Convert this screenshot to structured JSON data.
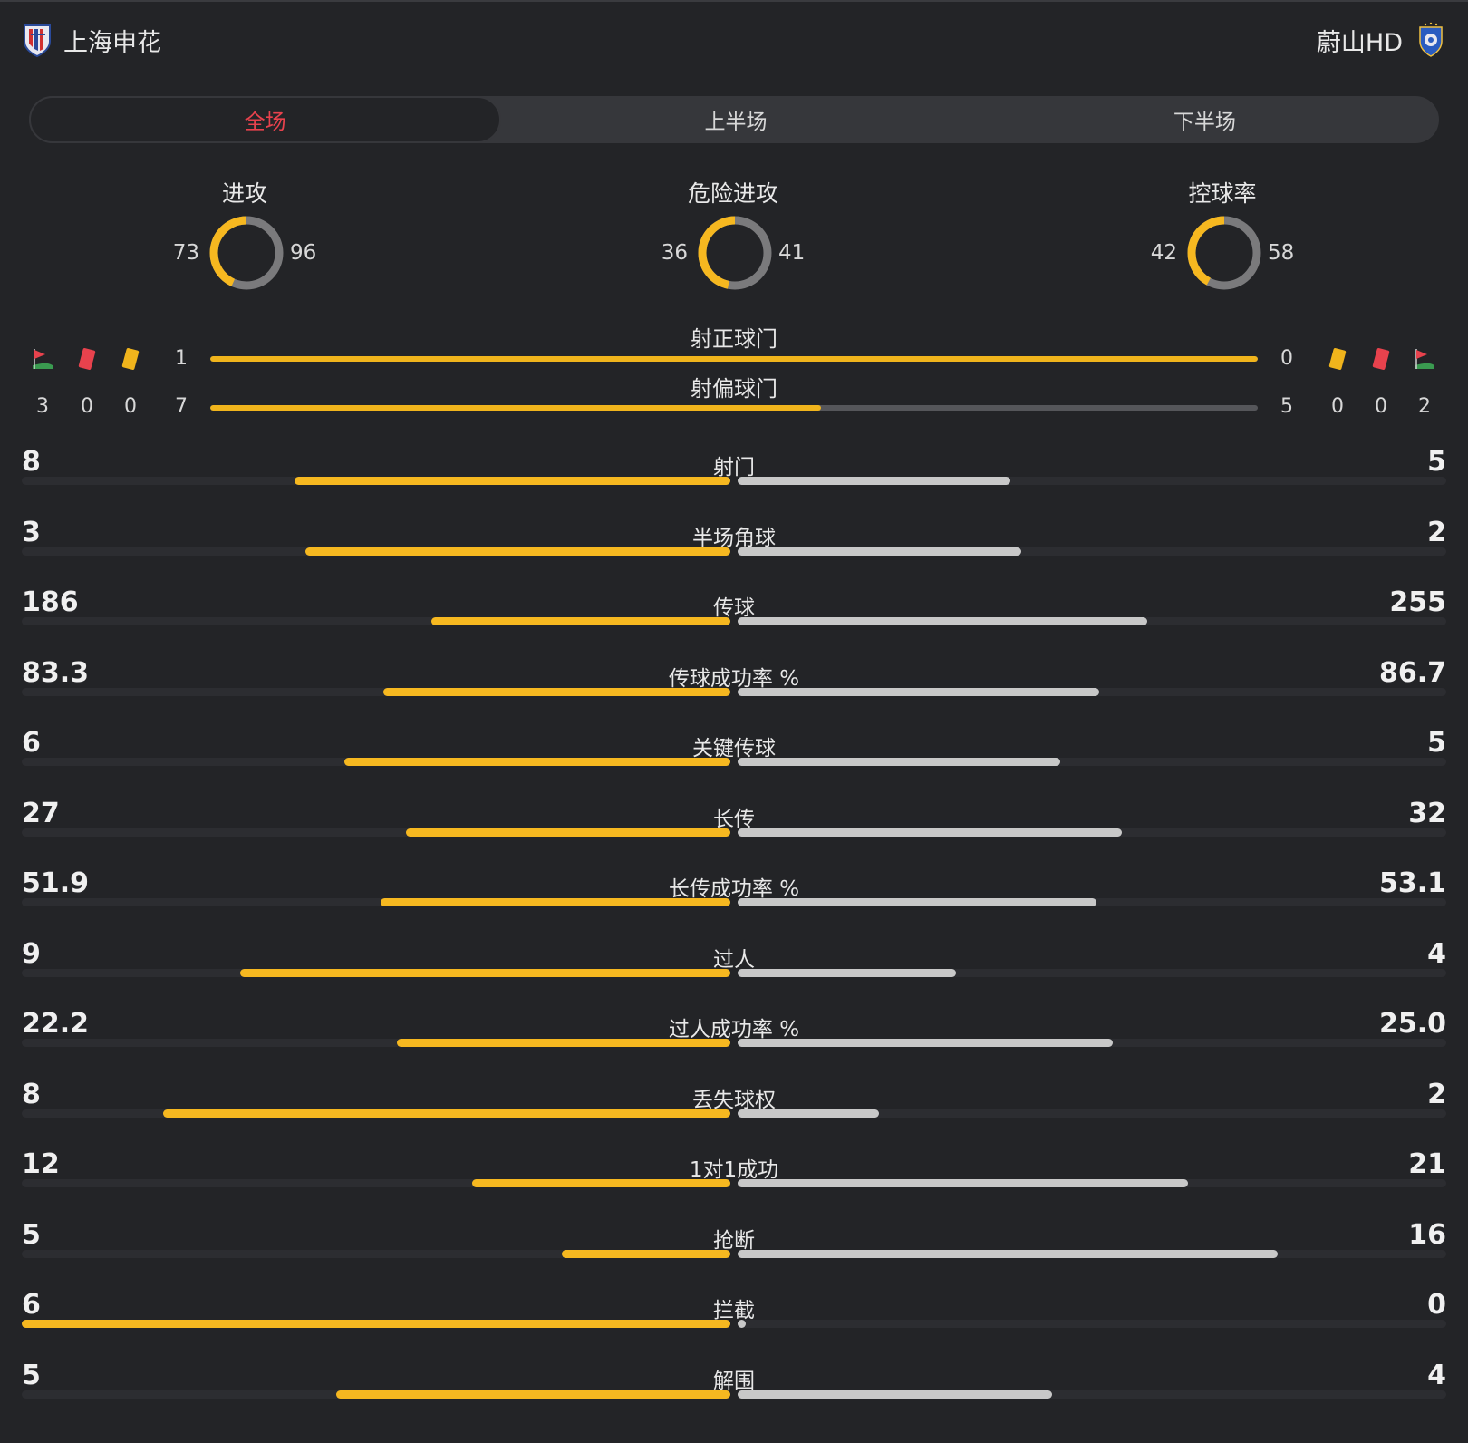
{
  "header": {
    "home_team": "上海申花",
    "away_team": "蔚山HD"
  },
  "tabs": [
    {
      "label": "全场",
      "active": true
    },
    {
      "label": "上半场",
      "active": false
    },
    {
      "label": "下半场",
      "active": false
    }
  ],
  "donuts": [
    {
      "title": "进攻",
      "home": "73",
      "away": "96"
    },
    {
      "title": "危险进攻",
      "home": "36",
      "away": "41"
    },
    {
      "title": "控球率",
      "home": "42",
      "away": "58"
    }
  ],
  "events": {
    "home": {
      "corners": "3",
      "red_cards": "0",
      "yellow_cards": "0"
    },
    "away": {
      "yellow_cards": "0",
      "red_cards": "0",
      "corners": "2"
    }
  },
  "shots": [
    {
      "label": "射正球门",
      "home": "1",
      "away": "0",
      "home_fraction": 1.0
    },
    {
      "label": "射偏球门",
      "home": "7",
      "away": "5",
      "home_fraction": 0.583
    }
  ],
  "stats": [
    {
      "label": "射门",
      "home": "8",
      "away": "5",
      "home_frac": 0.615,
      "away_frac": 0.385
    },
    {
      "label": "半场角球",
      "home": "3",
      "away": "2",
      "home_frac": 0.6,
      "away_frac": 0.4
    },
    {
      "label": "传球",
      "home": "186",
      "away": "255",
      "home_frac": 0.422,
      "away_frac": 0.578
    },
    {
      "label": "传球成功率 %",
      "home": "83.3",
      "away": "86.7",
      "home_frac": 0.49,
      "away_frac": 0.51
    },
    {
      "label": "关键传球",
      "home": "6",
      "away": "5",
      "home_frac": 0.545,
      "away_frac": 0.455
    },
    {
      "label": "长传",
      "home": "27",
      "away": "32",
      "home_frac": 0.458,
      "away_frac": 0.542
    },
    {
      "label": "长传成功率 %",
      "home": "51.9",
      "away": "53.1",
      "home_frac": 0.494,
      "away_frac": 0.506
    },
    {
      "label": "过人",
      "home": "9",
      "away": "4",
      "home_frac": 0.692,
      "away_frac": 0.308
    },
    {
      "label": "过人成功率 %",
      "home": "22.2",
      "away": "25.0",
      "home_frac": 0.47,
      "away_frac": 0.53
    },
    {
      "label": "丢失球权",
      "home": "8",
      "away": "2",
      "home_frac": 0.8,
      "away_frac": 0.2
    },
    {
      "label": "1对1成功",
      "home": "12",
      "away": "21",
      "home_frac": 0.364,
      "away_frac": 0.636
    },
    {
      "label": "抢断",
      "home": "5",
      "away": "16",
      "home_frac": 0.238,
      "away_frac": 0.762
    },
    {
      "label": "拦截",
      "home": "6",
      "away": "0",
      "home_frac": 1.0,
      "away_frac": 0.0
    },
    {
      "label": "解围",
      "home": "5",
      "away": "4",
      "home_frac": 0.556,
      "away_frac": 0.444
    }
  ],
  "colors": {
    "home": "#f6b820",
    "away": "#c8c8c8",
    "donut_away": "#7a7a7c",
    "active_tab": "#e8424d",
    "red_card": "#e8424d",
    "yellow_card": "#f0b41c",
    "corner_flag": "#e8424d"
  }
}
